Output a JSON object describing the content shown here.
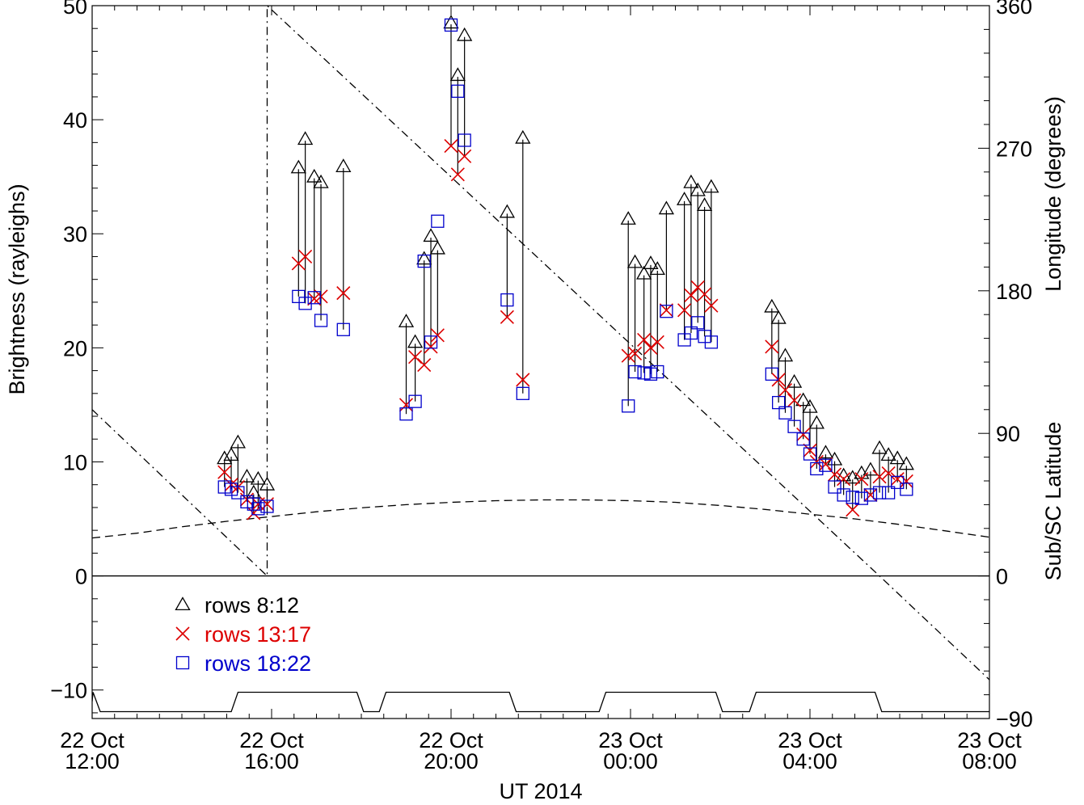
{
  "chart_data": {
    "type": "scatter",
    "x_unit": "hours since 22 Oct 2014 12:00 UT",
    "xlabel": "UT 2014",
    "ylabel_left": "Brightness (rayleighs)",
    "ylabel_right_top": "Longitude  (degrees)",
    "ylabel_right_bottom": "Sub/SC  Latitude",
    "xlim": [
      0,
      20
    ],
    "ylim_left": [
      -12.5,
      50
    ],
    "right_axis_range": [
      -90,
      360
    ],
    "x_ticks": [
      {
        "x": 0,
        "line1": "22 Oct",
        "line2": "12:00"
      },
      {
        "x": 4,
        "line1": "22 Oct",
        "line2": "16:00"
      },
      {
        "x": 8,
        "line1": "22 Oct",
        "line2": "20:00"
      },
      {
        "x": 12,
        "line1": "23 Oct",
        "line2": "00:00"
      },
      {
        "x": 16,
        "line1": "23 Oct",
        "line2": "04:00"
      },
      {
        "x": 20,
        "line1": "23 Oct",
        "line2": "08:00"
      }
    ],
    "y_ticks_left": [
      {
        "v": -10,
        "label": "−10"
      },
      {
        "v": 0,
        "label": "0"
      },
      {
        "v": 10,
        "label": "10"
      },
      {
        "v": 20,
        "label": "20"
      },
      {
        "v": 30,
        "label": "30"
      },
      {
        "v": 40,
        "label": "40"
      },
      {
        "v": 50,
        "label": "50"
      }
    ],
    "y_ticks_right": [
      {
        "v": -90,
        "label": "−90"
      },
      {
        "v": 0,
        "label": "0"
      },
      {
        "v": 90,
        "label": "90"
      },
      {
        "v": 180,
        "label": "180"
      },
      {
        "v": 270,
        "label": "270"
      },
      {
        "v": 360,
        "label": "360"
      }
    ],
    "legend": [
      {
        "label": "rows 8:12",
        "marker": "triangle",
        "color": "#000000"
      },
      {
        "label": "rows 13:17",
        "marker": "x",
        "color": "#dd0000"
      },
      {
        "label": "rows 18:22",
        "marker": "square",
        "color": "#0000cc"
      }
    ],
    "legend_position": "lower-left",
    "series": [
      {
        "name": "rows 8:12",
        "marker": "triangle",
        "color": "#000000",
        "points": [
          [
            2.95,
            10.3
          ],
          [
            3.1,
            10.6
          ],
          [
            3.25,
            11.7
          ],
          [
            3.45,
            8.7
          ],
          [
            3.6,
            7.3
          ],
          [
            3.7,
            8.5
          ],
          [
            3.9,
            8.0
          ],
          [
            4.6,
            35.8
          ],
          [
            4.75,
            38.3
          ],
          [
            4.95,
            35.0
          ],
          [
            5.1,
            34.5
          ],
          [
            5.6,
            35.9
          ],
          [
            7.0,
            22.3
          ],
          [
            7.2,
            20.5
          ],
          [
            7.4,
            27.8
          ],
          [
            7.55,
            29.8
          ],
          [
            7.7,
            28.7
          ],
          [
            8.0,
            48.5
          ],
          [
            8.15,
            43.9
          ],
          [
            8.3,
            47.4
          ],
          [
            9.25,
            31.9
          ],
          [
            9.6,
            38.4
          ],
          [
            11.95,
            31.3
          ],
          [
            12.1,
            27.5
          ],
          [
            12.3,
            26.5
          ],
          [
            12.45,
            27.4
          ],
          [
            12.6,
            26.9
          ],
          [
            12.8,
            32.2
          ],
          [
            13.2,
            33.0
          ],
          [
            13.35,
            34.5
          ],
          [
            13.5,
            33.8
          ],
          [
            13.65,
            32.5
          ],
          [
            13.8,
            34.1
          ],
          [
            15.15,
            23.6
          ],
          [
            15.3,
            22.6
          ],
          [
            15.45,
            19.3
          ],
          [
            15.65,
            17.0
          ],
          [
            15.85,
            15.4
          ],
          [
            16.0,
            14.8
          ],
          [
            16.15,
            13.4
          ],
          [
            16.35,
            10.8
          ],
          [
            16.55,
            10.2
          ],
          [
            16.75,
            8.8
          ],
          [
            16.95,
            8.6
          ],
          [
            17.15,
            9.0
          ],
          [
            17.35,
            9.3
          ],
          [
            17.55,
            11.2
          ],
          [
            17.75,
            10.6
          ],
          [
            17.95,
            10.3
          ],
          [
            18.15,
            9.8
          ]
        ]
      },
      {
        "name": "rows 13:17",
        "marker": "x",
        "color": "#dd0000",
        "points": [
          [
            2.95,
            9.1
          ],
          [
            3.1,
            8.0
          ],
          [
            3.25,
            7.8
          ],
          [
            3.45,
            6.7
          ],
          [
            3.6,
            5.5
          ],
          [
            3.7,
            6.3
          ],
          [
            3.9,
            6.3
          ],
          [
            4.6,
            27.4
          ],
          [
            4.75,
            28.0
          ],
          [
            4.95,
            24.3
          ],
          [
            5.1,
            24.5
          ],
          [
            5.6,
            24.8
          ],
          [
            7.0,
            15.0
          ],
          [
            7.2,
            19.2
          ],
          [
            7.4,
            18.5
          ],
          [
            7.55,
            20.1
          ],
          [
            7.7,
            21.1
          ],
          [
            8.0,
            37.7
          ],
          [
            8.15,
            35.2
          ],
          [
            8.3,
            36.8
          ],
          [
            9.25,
            22.7
          ],
          [
            9.6,
            17.2
          ],
          [
            11.95,
            19.3
          ],
          [
            12.1,
            19.5
          ],
          [
            12.3,
            20.7
          ],
          [
            12.45,
            20.0
          ],
          [
            12.6,
            20.5
          ],
          [
            12.8,
            23.3
          ],
          [
            13.2,
            23.3
          ],
          [
            13.35,
            24.6
          ],
          [
            13.5,
            25.3
          ],
          [
            13.65,
            24.7
          ],
          [
            13.8,
            23.7
          ],
          [
            15.15,
            20.1
          ],
          [
            15.3,
            17.2
          ],
          [
            15.45,
            16.3
          ],
          [
            15.65,
            15.4
          ],
          [
            15.85,
            12.4
          ],
          [
            16.0,
            11.0
          ],
          [
            16.15,
            10.0
          ],
          [
            16.35,
            9.8
          ],
          [
            16.55,
            8.9
          ],
          [
            16.75,
            8.5
          ],
          [
            16.95,
            5.8
          ],
          [
            17.15,
            8.5
          ],
          [
            17.35,
            7.1
          ],
          [
            17.55,
            8.7
          ],
          [
            17.75,
            9.0
          ],
          [
            17.95,
            8.5
          ],
          [
            18.15,
            8.3
          ]
        ]
      },
      {
        "name": "rows 18:22",
        "marker": "square",
        "color": "#0000cc",
        "points": [
          [
            2.95,
            7.8
          ],
          [
            3.1,
            7.6
          ],
          [
            3.25,
            7.3
          ],
          [
            3.45,
            6.5
          ],
          [
            3.6,
            6.3
          ],
          [
            3.7,
            5.9
          ],
          [
            3.9,
            6.1
          ],
          [
            4.6,
            24.5
          ],
          [
            4.75,
            23.9
          ],
          [
            4.95,
            24.4
          ],
          [
            5.1,
            22.4
          ],
          [
            5.6,
            21.6
          ],
          [
            7.0,
            14.2
          ],
          [
            7.2,
            15.3
          ],
          [
            7.4,
            27.6
          ],
          [
            7.55,
            20.5
          ],
          [
            7.7,
            31.1
          ],
          [
            8.0,
            48.3
          ],
          [
            8.15,
            42.5
          ],
          [
            8.3,
            38.2
          ],
          [
            9.25,
            24.2
          ],
          [
            9.6,
            16.0
          ],
          [
            11.95,
            14.9
          ],
          [
            12.1,
            17.9
          ],
          [
            12.3,
            17.8
          ],
          [
            12.45,
            17.7
          ],
          [
            12.6,
            17.9
          ],
          [
            12.8,
            23.2
          ],
          [
            13.2,
            20.7
          ],
          [
            13.35,
            21.3
          ],
          [
            13.5,
            22.2
          ],
          [
            13.65,
            21.0
          ],
          [
            13.8,
            20.5
          ],
          [
            15.15,
            17.7
          ],
          [
            15.3,
            15.2
          ],
          [
            15.45,
            14.3
          ],
          [
            15.65,
            13.1
          ],
          [
            15.85,
            12.0
          ],
          [
            16.0,
            10.7
          ],
          [
            16.15,
            9.4
          ],
          [
            16.35,
            9.7
          ],
          [
            16.55,
            7.8
          ],
          [
            16.75,
            7.1
          ],
          [
            16.95,
            6.9
          ],
          [
            17.15,
            6.8
          ],
          [
            17.35,
            7.1
          ],
          [
            17.55,
            7.3
          ],
          [
            17.75,
            7.3
          ],
          [
            17.95,
            8.2
          ],
          [
            18.15,
            7.6
          ]
        ]
      }
    ],
    "longitude_curve": {
      "unit": "degrees",
      "points": [
        [
          0,
          105
        ],
        [
          3.9,
          0
        ],
        [
          3.9,
          0
        ],
        [
          3.9,
          360
        ],
        [
          17.55,
          0
        ],
        [
          20,
          -65.5
        ]
      ]
    },
    "latitude_curve": {
      "unit": "degrees",
      "points": [
        [
          0,
          24
        ],
        [
          1,
          27
        ],
        [
          2,
          31
        ],
        [
          3,
          34.5
        ],
        [
          4,
          37.5
        ],
        [
          5,
          40.5
        ],
        [
          6,
          43
        ],
        [
          7,
          45
        ],
        [
          8,
          46.5
        ],
        [
          9,
          47.5
        ],
        [
          10,
          48
        ],
        [
          11,
          48
        ],
        [
          12,
          47.5
        ],
        [
          13,
          46.5
        ],
        [
          14,
          44.5
        ],
        [
          15,
          42
        ],
        [
          16,
          39
        ],
        [
          17,
          36
        ],
        [
          18,
          32.5
        ],
        [
          19,
          28.5
        ],
        [
          20,
          24.5
        ]
      ]
    },
    "bottom_trace": {
      "points": [
        [
          0,
          -11
        ],
        [
          0.02,
          -10.2
        ],
        [
          0.18,
          -11.9
        ],
        [
          3.1,
          -11.9
        ],
        [
          3.25,
          -10.2
        ],
        [
          5.9,
          -10.2
        ],
        [
          6.05,
          -11.9
        ],
        [
          6.4,
          -11.9
        ],
        [
          6.55,
          -10.2
        ],
        [
          9.3,
          -10.2
        ],
        [
          9.45,
          -11.9
        ],
        [
          11.3,
          -11.9
        ],
        [
          11.45,
          -10.2
        ],
        [
          13.9,
          -10.2
        ],
        [
          14.05,
          -11.9
        ],
        [
          14.65,
          -11.9
        ],
        [
          14.8,
          -10.2
        ],
        [
          17.45,
          -10.2
        ],
        [
          17.6,
          -11.9
        ],
        [
          20,
          -11.9
        ]
      ]
    },
    "grid": false
  }
}
